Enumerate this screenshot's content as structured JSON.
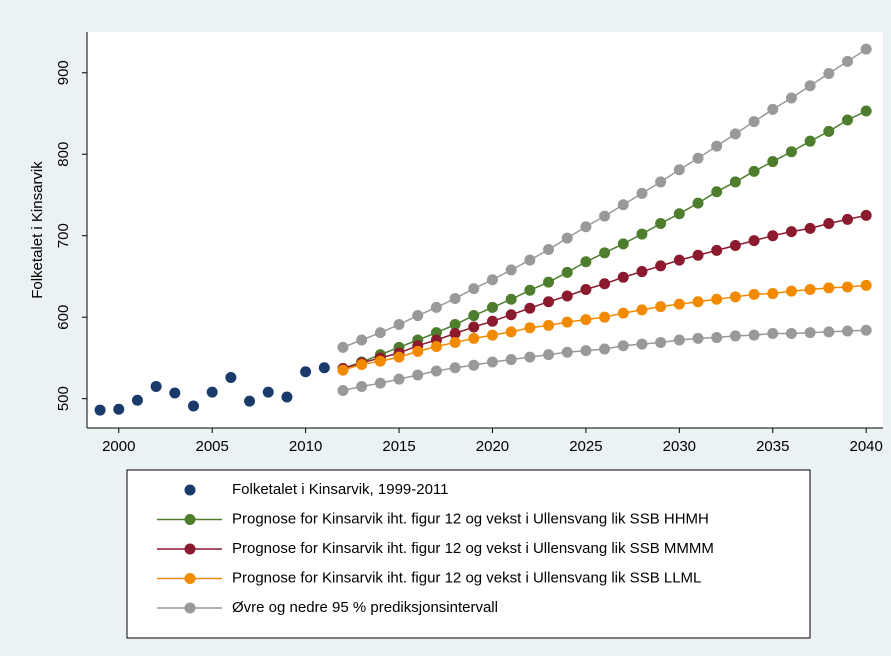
{
  "chart_data": {
    "type": "line",
    "ylabel": "Folketalet i Kinsarvik",
    "x": [
      1999,
      2000,
      2001,
      2002,
      2003,
      2004,
      2005,
      2006,
      2007,
      2008,
      2009,
      2010,
      2011,
      2012,
      2013,
      2014,
      2015,
      2016,
      2017,
      2018,
      2019,
      2020,
      2021,
      2022,
      2023,
      2024,
      2025,
      2026,
      2027,
      2028,
      2029,
      2030,
      2031,
      2032,
      2033,
      2034,
      2035,
      2036,
      2037,
      2038,
      2039,
      2040
    ],
    "xlim": [
      1998.3,
      2040.9
    ],
    "xticks": [
      2000,
      2005,
      2010,
      2015,
      2020,
      2025,
      2030,
      2035,
      2040
    ],
    "ylim": [
      464,
      950
    ],
    "yticks": [
      500,
      600,
      700,
      800,
      900
    ],
    "series": [
      {
        "name": "Folketalet i Kinsarvik, 1999-2011",
        "color": "#1a3a6b",
        "mode": "markers",
        "values": [
          486,
          487,
          498,
          515,
          507,
          491,
          508,
          526,
          497,
          508,
          502,
          533,
          538,
          null,
          null,
          null,
          null,
          null,
          null,
          null,
          null,
          null,
          null,
          null,
          null,
          null,
          null,
          null,
          null,
          null,
          null,
          null,
          null,
          null,
          null,
          null,
          null,
          null,
          null,
          null,
          null,
          null
        ]
      },
      {
        "name": "Prognose for Kinsarvik iht. figur 12 og vekst i Ullensvang lik SSB HHMH",
        "color": "#4e7d2e",
        "mode": "lines+markers",
        "values": [
          null,
          null,
          null,
          null,
          null,
          null,
          null,
          null,
          null,
          null,
          null,
          null,
          null,
          537,
          545,
          554,
          563,
          572,
          581,
          591,
          602,
          612,
          622,
          633,
          643,
          655,
          668,
          679,
          690,
          702,
          715,
          727,
          740,
          754,
          766,
          779,
          791,
          803,
          816,
          828,
          842,
          853
        ]
      },
      {
        "name": "Prognose for Kinsarvik iht. figur 12 og vekst i Ullensvang lik SSB MMMM",
        "color": "#8b1a2e",
        "mode": "lines+markers",
        "values": [
          null,
          null,
          null,
          null,
          null,
          null,
          null,
          null,
          null,
          null,
          null,
          null,
          null,
          537,
          544,
          550,
          556,
          565,
          572,
          580,
          588,
          595,
          603,
          611,
          619,
          626,
          634,
          641,
          649,
          656,
          663,
          670,
          676,
          682,
          688,
          694,
          700,
          705,
          709,
          715,
          720,
          725
        ]
      },
      {
        "name": "Prognose for Kinsarvik iht. figur 12 og vekst i Ullensvang lik SSB LLML",
        "color": "#f28a00",
        "mode": "lines+markers",
        "values": [
          null,
          null,
          null,
          null,
          null,
          null,
          null,
          null,
          null,
          null,
          null,
          null,
          null,
          535,
          542,
          546,
          551,
          558,
          564,
          569,
          574,
          578,
          582,
          587,
          590,
          594,
          597,
          600,
          605,
          609,
          613,
          616,
          619,
          622,
          625,
          628,
          629,
          632,
          634,
          636,
          637,
          639
        ]
      },
      {
        "name": "Øvre og nedre 95 % prediksjonsintervall",
        "color": "#999999",
        "mode": "lines+markers",
        "upper": [
          null,
          null,
          null,
          null,
          null,
          null,
          null,
          null,
          null,
          null,
          null,
          null,
          null,
          563,
          572,
          581,
          591,
          602,
          612,
          623,
          635,
          646,
          658,
          670,
          683,
          697,
          711,
          724,
          738,
          752,
          766,
          781,
          795,
          810,
          825,
          840,
          855,
          869,
          884,
          899,
          914,
          929
        ],
        "lower": [
          null,
          null,
          null,
          null,
          null,
          null,
          null,
          null,
          null,
          null,
          null,
          null,
          null,
          510,
          515,
          519,
          524,
          529,
          534,
          538,
          541,
          545,
          548,
          551,
          554,
          557,
          559,
          561,
          565,
          567,
          569,
          572,
          574,
          575,
          577,
          578,
          580,
          580,
          581,
          582,
          583,
          584
        ]
      }
    ]
  }
}
